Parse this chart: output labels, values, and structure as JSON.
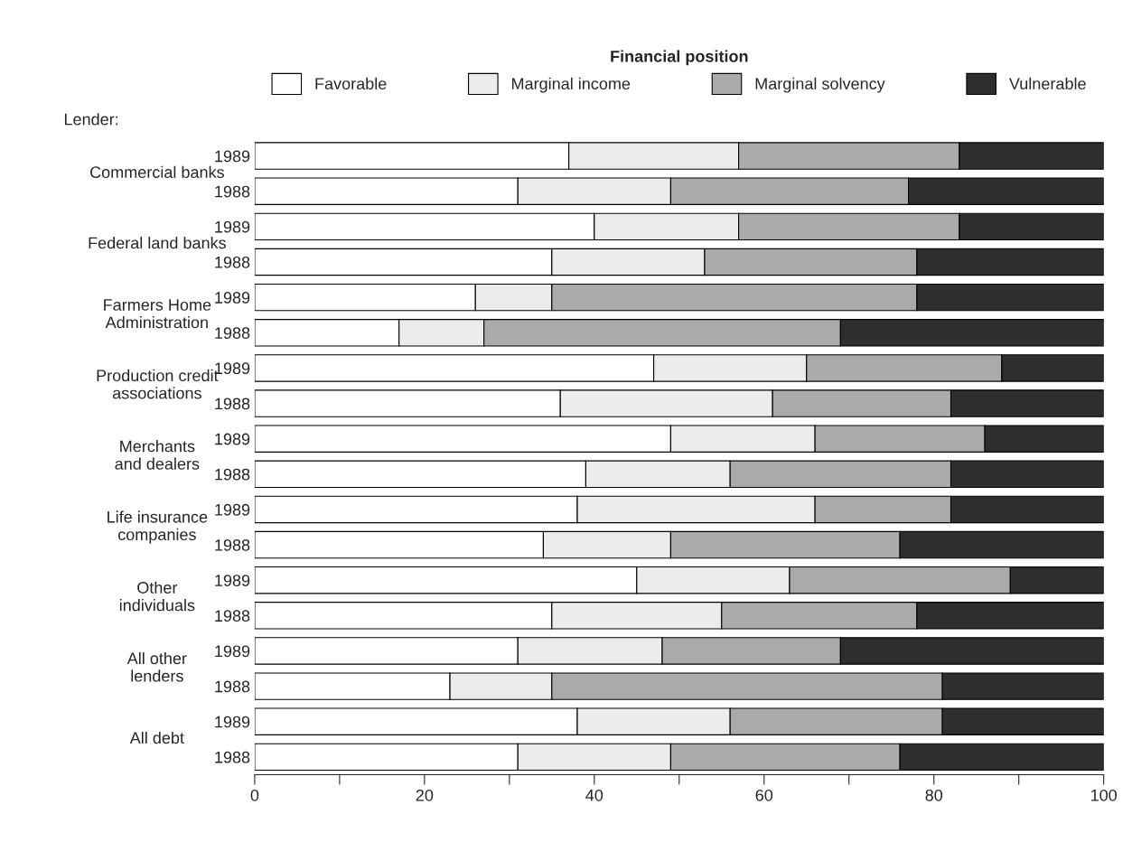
{
  "chart_data": {
    "type": "bar",
    "orientation": "horizontal",
    "stacked": true,
    "legend_title": "Financial position",
    "legend": "top",
    "categories": [
      "1989",
      "1988",
      "1989",
      "1988",
      "1989",
      "1988",
      "1989",
      "1988",
      "1989",
      "1988",
      "1989",
      "1988",
      "1989",
      "1988",
      "1989",
      "1988",
      "1989",
      "1988"
    ],
    "series": [
      {
        "name": "Favorable",
        "color": "#ffffff",
        "values": [
          37,
          31,
          40,
          35,
          26,
          17,
          47,
          36,
          49,
          39,
          38,
          34,
          45,
          35,
          31,
          23,
          38,
          31
        ]
      },
      {
        "name": "Marginal income",
        "color": "#ececec",
        "values": [
          20,
          18,
          17,
          18,
          9,
          10,
          18,
          25,
          17,
          17,
          28,
          15,
          18,
          20,
          17,
          12,
          18,
          18
        ]
      },
      {
        "name": "Marginal solvency",
        "color": "#aaaaaa",
        "values": [
          26,
          28,
          26,
          25,
          43,
          42,
          23,
          21,
          20,
          26,
          16,
          27,
          26,
          23,
          21,
          46,
          25,
          27
        ]
      },
      {
        "name": "Vulnerable",
        "color": "#2e2e2e",
        "values": [
          17,
          23,
          17,
          22,
          22,
          31,
          12,
          18,
          14,
          18,
          18,
          24,
          11,
          22,
          31,
          19,
          19,
          24
        ]
      }
    ],
    "xlim": [
      0,
      100
    ],
    "xticks": [
      0,
      {
        "value": 10,
        "label": null
      },
      20,
      {
        "value": 30,
        "label": null
      },
      40,
      {
        "value": 50,
        "label": null
      },
      60,
      {
        "value": 70,
        "label": null
      },
      80,
      {
        "value": 90,
        "label": null
      },
      100
    ],
    "annotations": [
      "Lender:",
      "Commercial banks",
      "Federal land banks",
      "Farmers Home\nAdministration",
      "Production credit\nassociations",
      "Merchants\nand dealers",
      "Life insurance\ncompanies",
      "Other\nindividuals",
      "All other\nlenders",
      "All debt"
    ],
    "grid": false
  }
}
